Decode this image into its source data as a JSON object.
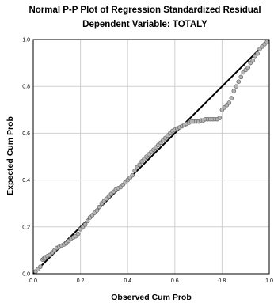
{
  "chart_data": {
    "type": "scatter",
    "title": "Normal P-P Plot of Regression Standardized Residual",
    "subtitle": "Dependent Variable: TOTALY",
    "xlabel": "Observed Cum Prob",
    "ylabel": "Expected Cum Prob",
    "xlim": [
      0,
      1
    ],
    "ylim": [
      0,
      1
    ],
    "xticks": [
      "0.0",
      "0.2",
      "0.4",
      "0.6",
      "0.8",
      "1.0"
    ],
    "yticks": [
      "0.0",
      "0.2",
      "0.4",
      "0.6",
      "0.8",
      "1.0"
    ],
    "grid": true,
    "reference_line": {
      "from": [
        0,
        0
      ],
      "to": [
        1,
        1
      ]
    },
    "colors": {
      "points": "#6e6e6e",
      "point_fill": "#b4b4b4",
      "line": "#000000",
      "grid": "#cfcfcf",
      "frame": "#000000"
    },
    "points": {
      "x": [
        0.01,
        0.02,
        0.03,
        0.04,
        0.045,
        0.05,
        0.06,
        0.07,
        0.08,
        0.09,
        0.1,
        0.11,
        0.12,
        0.13,
        0.14,
        0.15,
        0.16,
        0.17,
        0.18,
        0.19,
        0.2,
        0.21,
        0.22,
        0.23,
        0.24,
        0.25,
        0.26,
        0.27,
        0.28,
        0.29,
        0.3,
        0.31,
        0.32,
        0.33,
        0.34,
        0.35,
        0.36,
        0.37,
        0.38,
        0.39,
        0.4,
        0.41,
        0.42,
        0.43,
        0.44,
        0.45,
        0.46,
        0.47,
        0.48,
        0.49,
        0.5,
        0.51,
        0.52,
        0.53,
        0.54,
        0.55,
        0.56,
        0.57,
        0.58,
        0.59,
        0.6,
        0.61,
        0.62,
        0.63,
        0.64,
        0.65,
        0.66,
        0.67,
        0.68,
        0.69,
        0.7,
        0.71,
        0.72,
        0.73,
        0.74,
        0.75,
        0.76,
        0.77,
        0.78,
        0.79,
        0.8,
        0.81,
        0.82,
        0.83,
        0.84,
        0.85,
        0.86,
        0.87,
        0.88,
        0.89,
        0.9,
        0.91,
        0.92,
        0.93,
        0.94,
        0.95,
        0.96,
        0.97,
        0.98,
        0.99
      ],
      "y": [
        0.01,
        0.02,
        0.03,
        0.06,
        0.065,
        0.07,
        0.075,
        0.08,
        0.09,
        0.1,
        0.11,
        0.115,
        0.12,
        0.125,
        0.13,
        0.14,
        0.15,
        0.155,
        0.16,
        0.17,
        0.19,
        0.2,
        0.21,
        0.225,
        0.24,
        0.25,
        0.26,
        0.27,
        0.285,
        0.3,
        0.31,
        0.32,
        0.33,
        0.34,
        0.35,
        0.36,
        0.365,
        0.37,
        0.38,
        0.39,
        0.4,
        0.41,
        0.42,
        0.44,
        0.455,
        0.465,
        0.48,
        0.49,
        0.5,
        0.51,
        0.52,
        0.53,
        0.54,
        0.55,
        0.56,
        0.57,
        0.58,
        0.59,
        0.6,
        0.61,
        0.615,
        0.62,
        0.625,
        0.63,
        0.635,
        0.64,
        0.645,
        0.65,
        0.65,
        0.65,
        0.65,
        0.655,
        0.655,
        0.66,
        0.66,
        0.66,
        0.66,
        0.66,
        0.66,
        0.665,
        0.7,
        0.71,
        0.72,
        0.73,
        0.75,
        0.78,
        0.8,
        0.82,
        0.84,
        0.86,
        0.87,
        0.88,
        0.9,
        0.91,
        0.93,
        0.94,
        0.96,
        0.97,
        0.98,
        0.99
      ]
    }
  }
}
